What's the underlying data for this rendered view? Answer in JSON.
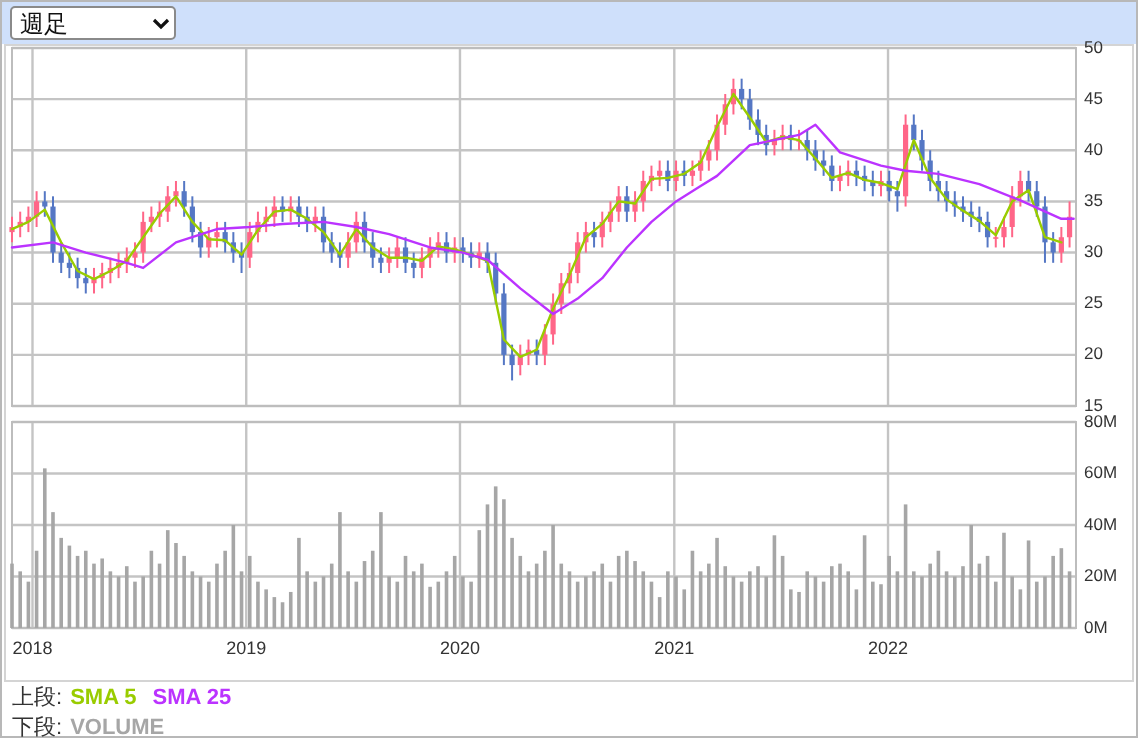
{
  "chart_data": [
    {
      "type": "candlestick",
      "annotations": [
        "週足"
      ],
      "x": [
        "2017-11-27",
        "2017-12-11",
        "2017-12-25",
        "2018-01-08",
        "2018-01-22",
        "2018-02-05",
        "2018-02-19",
        "2018-03-05",
        "2018-03-19",
        "2018-04-02",
        "2018-04-16",
        "2018-04-30",
        "2018-05-14",
        "2018-05-28",
        "2018-06-11",
        "2018-06-25",
        "2018-07-09",
        "2018-07-23",
        "2018-08-06",
        "2018-08-20",
        "2018-09-03",
        "2018-09-17",
        "2018-10-01",
        "2018-10-15",
        "2018-10-29",
        "2018-11-12",
        "2018-11-26",
        "2018-12-10",
        "2018-12-24",
        "2019-01-07",
        "2019-01-21",
        "2019-02-04",
        "2019-02-18",
        "2019-03-04",
        "2019-03-18",
        "2019-04-01",
        "2019-04-15",
        "2019-04-29",
        "2019-05-13",
        "2019-05-27",
        "2019-06-10",
        "2019-06-24",
        "2019-07-08",
        "2019-07-22",
        "2019-08-05",
        "2019-08-19",
        "2019-09-02",
        "2019-09-16",
        "2019-09-30",
        "2019-10-14",
        "2019-10-28",
        "2019-11-11",
        "2019-11-25",
        "2019-12-09",
        "2019-12-23",
        "2020-01-06",
        "2020-01-20",
        "2020-02-03",
        "2020-02-17",
        "2020-03-02",
        "2020-03-16",
        "2020-03-30",
        "2020-04-13",
        "2020-04-27",
        "2020-05-11",
        "2020-05-25",
        "2020-06-08",
        "2020-06-22",
        "2020-07-06",
        "2020-07-20",
        "2020-08-03",
        "2020-08-17",
        "2020-08-31",
        "2020-09-14",
        "2020-09-28",
        "2020-10-12",
        "2020-10-26",
        "2020-11-09",
        "2020-11-23",
        "2020-12-07",
        "2020-12-21",
        "2021-01-04",
        "2021-01-18",
        "2021-02-01",
        "2021-02-15",
        "2021-03-01",
        "2021-03-15",
        "2021-03-29",
        "2021-04-12",
        "2021-04-26",
        "2021-05-10",
        "2021-05-24",
        "2021-06-07",
        "2021-06-21",
        "2021-07-05",
        "2021-07-19",
        "2021-08-02",
        "2021-08-16",
        "2021-08-30",
        "2021-09-13",
        "2021-09-27",
        "2021-10-11",
        "2021-10-25",
        "2021-11-08",
        "2021-11-22",
        "2021-12-06",
        "2021-12-20",
        "2022-01-03",
        "2022-01-17",
        "2022-01-31",
        "2022-02-14",
        "2022-02-28",
        "2022-03-14",
        "2022-03-28",
        "2022-04-11",
        "2022-04-25",
        "2022-05-09",
        "2022-05-23",
        "2022-06-06",
        "2022-06-20",
        "2022-07-04",
        "2022-07-18",
        "2022-08-01",
        "2022-08-15",
        "2022-08-29",
        "2022-09-12",
        "2022-09-26",
        "2022-10-10",
        "2022-10-24",
        "2022-11-07"
      ],
      "ohlc": [
        [
          32,
          33.5,
          31,
          32.5
        ],
        [
          32.5,
          34,
          31.5,
          33
        ],
        [
          33,
          34.5,
          32,
          33.5
        ],
        [
          33.5,
          36,
          32.5,
          35
        ],
        [
          35,
          36,
          33.5,
          34.5
        ],
        [
          34.5,
          35.5,
          29,
          30
        ],
        [
          30,
          31,
          28,
          29
        ],
        [
          29,
          30,
          27.5,
          28.5
        ],
        [
          28.5,
          29.5,
          26.5,
          27.5
        ],
        [
          27.5,
          28.5,
          26,
          27
        ],
        [
          27,
          28.5,
          26,
          27.5
        ],
        [
          27.5,
          29,
          26.5,
          28
        ],
        [
          28,
          29.5,
          27,
          28.5
        ],
        [
          28.5,
          30,
          27.5,
          29
        ],
        [
          29,
          30.5,
          28,
          29.5
        ],
        [
          29.5,
          31,
          28.5,
          30
        ],
        [
          30,
          34,
          29,
          33
        ],
        [
          33,
          34.5,
          32,
          33.5
        ],
        [
          33.5,
          35,
          32.5,
          34
        ],
        [
          34,
          36.5,
          33,
          35.5
        ],
        [
          35.5,
          37,
          34.5,
          36
        ],
        [
          36,
          37,
          33.5,
          34.5
        ],
        [
          34.5,
          35.5,
          31,
          32
        ],
        [
          32,
          33,
          29.5,
          30.5
        ],
        [
          30.5,
          32.5,
          29.5,
          31.5
        ],
        [
          31.5,
          33,
          30.5,
          32
        ],
        [
          32,
          33,
          30,
          31
        ],
        [
          31,
          32,
          29,
          30
        ],
        [
          30,
          31,
          28,
          29.5
        ],
        [
          29.5,
          33,
          28.5,
          32
        ],
        [
          32,
          34,
          31,
          33
        ],
        [
          33,
          34.5,
          32,
          33.5
        ],
        [
          33.5,
          35.5,
          32.5,
          34.5
        ],
        [
          34.5,
          35.5,
          33,
          34
        ],
        [
          34,
          35.5,
          33,
          34.5
        ],
        [
          34.5,
          35.5,
          32.5,
          33.5
        ],
        [
          33.5,
          34.5,
          32,
          33
        ],
        [
          33,
          34.5,
          32,
          33.5
        ],
        [
          33.5,
          34.5,
          30,
          31
        ],
        [
          31,
          32,
          29,
          30
        ],
        [
          30,
          31,
          28.5,
          29.5
        ],
        [
          29.5,
          32,
          28.5,
          31
        ],
        [
          31,
          34,
          30,
          33
        ],
        [
          33,
          34,
          30,
          31
        ],
        [
          31,
          32,
          28.5,
          29.5
        ],
        [
          29.5,
          30.5,
          28,
          29
        ],
        [
          29,
          30.5,
          28,
          29.5
        ],
        [
          29.5,
          31.5,
          28.5,
          30.5
        ],
        [
          30.5,
          31.5,
          28,
          29
        ],
        [
          29,
          30,
          27.5,
          28.5
        ],
        [
          28.5,
          30.5,
          27.5,
          29.5
        ],
        [
          29.5,
          31.5,
          28.5,
          30.5
        ],
        [
          30.5,
          32,
          29.5,
          31
        ],
        [
          31,
          32,
          29,
          30
        ],
        [
          30,
          31.5,
          29,
          30.5
        ],
        [
          30.5,
          31.5,
          29,
          30
        ],
        [
          30,
          31,
          28.5,
          29.5
        ],
        [
          29.5,
          31,
          28.5,
          30
        ],
        [
          30,
          31,
          28,
          29
        ],
        [
          29,
          30,
          25,
          26
        ],
        [
          26,
          27,
          19,
          20
        ],
        [
          20,
          21,
          17.5,
          19
        ],
        [
          19,
          21,
          18,
          20
        ],
        [
          20,
          21.5,
          19,
          20.5
        ],
        [
          20.5,
          21.5,
          19,
          20
        ],
        [
          20,
          23,
          19,
          22
        ],
        [
          22,
          26,
          21,
          25
        ],
        [
          25,
          28,
          24,
          27
        ],
        [
          27,
          29,
          26,
          28
        ],
        [
          28,
          32,
          27,
          31
        ],
        [
          31,
          33,
          30,
          32
        ],
        [
          32,
          33,
          30.5,
          31.5
        ],
        [
          31.5,
          34,
          30.5,
          33
        ],
        [
          33,
          35,
          32,
          34
        ],
        [
          34,
          36.5,
          33,
          35.5
        ],
        [
          35.5,
          36.5,
          33,
          34
        ],
        [
          34,
          36,
          33,
          35
        ],
        [
          35,
          38,
          34,
          37
        ],
        [
          37,
          38.5,
          36,
          37.5
        ],
        [
          37.5,
          39,
          36.5,
          38
        ],
        [
          38,
          39,
          36,
          37
        ],
        [
          37,
          39,
          36,
          38
        ],
        [
          38,
          39,
          36.5,
          37.5
        ],
        [
          37.5,
          39,
          36.5,
          38
        ],
        [
          38,
          40,
          37,
          39
        ],
        [
          39,
          41,
          38,
          40
        ],
        [
          40,
          43.5,
          39,
          42.5
        ],
        [
          42.5,
          45.5,
          41.5,
          44.5
        ],
        [
          44.5,
          47,
          43.5,
          46
        ],
        [
          46,
          47,
          44,
          45
        ],
        [
          45,
          46,
          42,
          43
        ],
        [
          43,
          44,
          40.5,
          41.5
        ],
        [
          41.5,
          42.5,
          39.5,
          40.5
        ],
        [
          40.5,
          42,
          39.5,
          41
        ],
        [
          41,
          42.5,
          40,
          41.5
        ],
        [
          41.5,
          42.5,
          40,
          41
        ],
        [
          41,
          42,
          40,
          41
        ],
        [
          41,
          42,
          39,
          40
        ],
        [
          40,
          41,
          38,
          39
        ],
        [
          39,
          40,
          37.5,
          38.5
        ],
        [
          38.5,
          39.5,
          36,
          37
        ],
        [
          37,
          38.5,
          36,
          37.5
        ],
        [
          37.5,
          39,
          36.5,
          38
        ],
        [
          38,
          39,
          36.5,
          37.5
        ],
        [
          37.5,
          38.5,
          36,
          37
        ],
        [
          37,
          38,
          35.5,
          36.5
        ],
        [
          36.5,
          38,
          35.5,
          37
        ],
        [
          37,
          38,
          35,
          36
        ],
        [
          36,
          37,
          34,
          35.5
        ],
        [
          35.5,
          43.5,
          34.5,
          42.5
        ],
        [
          42.5,
          43.5,
          40,
          41
        ],
        [
          41,
          42,
          38,
          39
        ],
        [
          39,
          40,
          36,
          37
        ],
        [
          37,
          38,
          35,
          36
        ],
        [
          36,
          37,
          34,
          35
        ],
        [
          35,
          36,
          33.5,
          34.5
        ],
        [
          34.5,
          35.5,
          33,
          34
        ],
        [
          34,
          35,
          32.5,
          33.5
        ],
        [
          33.5,
          34.5,
          32,
          33
        ],
        [
          33,
          34,
          30.5,
          31.5
        ],
        [
          31.5,
          32.5,
          30.5,
          31.5
        ],
        [
          31.5,
          33.5,
          30.5,
          32.5
        ],
        [
          32.5,
          36.5,
          31.5,
          35.5
        ],
        [
          35.5,
          38,
          34.5,
          37
        ],
        [
          37,
          38,
          35,
          36
        ],
        [
          36,
          37,
          33.5,
          34.5
        ],
        [
          34.5,
          35.5,
          29,
          31
        ],
        [
          31,
          32,
          29,
          30
        ],
        [
          30,
          32.5,
          29,
          31.5
        ],
        [
          31.5,
          35,
          30.5,
          33.5
        ]
      ],
      "series": [
        {
          "name": "SMA 5",
          "type": "line",
          "color": "#99cc00",
          "x": [
            "2017-11-27",
            "2017-12-25",
            "2018-01-22",
            "2018-02-19",
            "2018-03-19",
            "2018-04-16",
            "2018-05-14",
            "2018-06-11",
            "2018-07-09",
            "2018-08-06",
            "2018-09-03",
            "2018-10-01",
            "2018-10-29",
            "2018-11-26",
            "2018-12-24",
            "2019-01-21",
            "2019-02-18",
            "2019-03-18",
            "2019-04-15",
            "2019-05-13",
            "2019-06-10",
            "2019-07-08",
            "2019-08-05",
            "2019-09-02",
            "2019-09-30",
            "2019-10-28",
            "2019-11-25",
            "2019-12-23",
            "2020-01-20",
            "2020-02-17",
            "2020-03-16",
            "2020-04-13",
            "2020-05-11",
            "2020-06-08",
            "2020-07-06",
            "2020-08-03",
            "2020-08-31",
            "2020-09-28",
            "2020-10-26",
            "2020-11-23",
            "2020-12-21",
            "2021-01-18",
            "2021-02-15",
            "2021-03-15",
            "2021-04-12",
            "2021-05-10",
            "2021-06-07",
            "2021-07-05",
            "2021-08-02",
            "2021-08-30",
            "2021-09-27",
            "2021-10-25",
            "2021-11-22",
            "2021-12-20",
            "2022-01-17",
            "2022-02-14",
            "2022-03-14",
            "2022-04-11",
            "2022-05-09",
            "2022-06-06",
            "2022-07-04",
            "2022-08-01",
            "2022-08-29",
            "2022-09-26",
            "2022-10-24"
          ],
          "values": [
            32.3,
            33,
            34.2,
            31,
            28.2,
            27.4,
            28.2,
            29.2,
            31.5,
            33.8,
            35.5,
            33,
            31.3,
            31.2,
            29.8,
            32.2,
            34,
            34.2,
            33.3,
            32,
            29.8,
            32.3,
            30.5,
            29.5,
            29.5,
            29.2,
            30.6,
            30.3,
            29.8,
            29.2,
            21.5,
            19.8,
            20.5,
            24.5,
            27.8,
            31.5,
            32.8,
            35,
            34.8,
            37.2,
            37.3,
            37.7,
            38.8,
            42.3,
            45.5,
            43.2,
            40.8,
            41.3,
            41,
            39.2,
            37.3,
            37.8,
            37.1,
            36.8,
            36.2,
            41,
            37.3,
            35.2,
            34.1,
            33.1,
            31.7,
            35,
            36.1,
            31.5,
            31
          ]
        },
        {
          "name": "SMA 25",
          "type": "line",
          "color": "#bb33ff",
          "x": [
            "2017-11-27",
            "2018-02-05",
            "2018-04-02",
            "2018-06-11",
            "2018-07-09",
            "2018-09-03",
            "2018-11-12",
            "2019-01-07",
            "2019-03-04",
            "2019-05-13",
            "2019-07-08",
            "2019-09-02",
            "2019-11-11",
            "2020-01-06",
            "2020-02-17",
            "2020-04-13",
            "2020-06-08",
            "2020-07-20",
            "2020-08-31",
            "2020-10-12",
            "2020-11-23",
            "2021-01-04",
            "2021-02-15",
            "2021-03-15",
            "2021-05-10",
            "2021-08-02",
            "2021-08-30",
            "2021-10-11",
            "2021-12-20",
            "2022-01-31",
            "2022-03-28",
            "2022-06-06",
            "2022-08-15",
            "2022-10-24",
            "2022-11-14"
          ],
          "values": [
            30.5,
            31,
            30,
            29,
            28.5,
            31,
            32.3,
            32.5,
            32.8,
            33,
            32.5,
            31.8,
            30.5,
            30,
            29.3,
            26.5,
            24,
            25.5,
            27.5,
            30.5,
            33,
            35,
            36.5,
            37.5,
            40.5,
            41.5,
            42.5,
            39.8,
            38.5,
            38,
            37.7,
            36.7,
            35.1,
            33.3,
            33.3
          ]
        }
      ],
      "xlim": [
        "2017-11-27",
        "2022-11-18"
      ],
      "xticks": [
        {
          "value": "2018-01-01",
          "label": null
        },
        {
          "value": "2019-01-01",
          "label": null
        },
        {
          "value": "2020-01-01",
          "label": null
        },
        {
          "value": "2021-01-01",
          "label": null
        },
        {
          "value": "2022-01-01",
          "label": null
        }
      ],
      "ylim": [
        15,
        50
      ],
      "yticks": [
        15,
        20,
        25,
        30,
        35,
        40,
        45,
        50
      ],
      "tick_labels": "y",
      "grid": true,
      "legend": "bottom",
      "legend_title": "上段:"
    },
    {
      "type": "bar",
      "x": [
        "2017-11-27",
        "2017-12-11",
        "2017-12-25",
        "2018-01-08",
        "2018-01-22",
        "2018-02-05",
        "2018-02-19",
        "2018-03-05",
        "2018-03-19",
        "2018-04-02",
        "2018-04-16",
        "2018-04-30",
        "2018-05-14",
        "2018-05-28",
        "2018-06-11",
        "2018-06-25",
        "2018-07-09",
        "2018-07-23",
        "2018-08-06",
        "2018-08-20",
        "2018-09-03",
        "2018-09-17",
        "2018-10-01",
        "2018-10-15",
        "2018-10-29",
        "2018-11-12",
        "2018-11-26",
        "2018-12-10",
        "2018-12-24",
        "2019-01-07",
        "2019-01-21",
        "2019-02-04",
        "2019-02-18",
        "2019-03-04",
        "2019-03-18",
        "2019-04-01",
        "2019-04-15",
        "2019-04-29",
        "2019-05-13",
        "2019-05-27",
        "2019-06-10",
        "2019-06-24",
        "2019-07-08",
        "2019-07-22",
        "2019-08-05",
        "2019-08-19",
        "2019-09-02",
        "2019-09-16",
        "2019-09-30",
        "2019-10-14",
        "2019-10-28",
        "2019-11-11",
        "2019-11-25",
        "2019-12-09",
        "2019-12-23",
        "2020-01-06",
        "2020-01-20",
        "2020-02-03",
        "2020-02-17",
        "2020-03-02",
        "2020-03-16",
        "2020-03-30",
        "2020-04-13",
        "2020-04-27",
        "2020-05-11",
        "2020-05-25",
        "2020-06-08",
        "2020-06-22",
        "2020-07-06",
        "2020-07-20",
        "2020-08-03",
        "2020-08-17",
        "2020-08-31",
        "2020-09-14",
        "2020-09-28",
        "2020-10-12",
        "2020-10-26",
        "2020-11-09",
        "2020-11-23",
        "2020-12-07",
        "2020-12-21",
        "2021-01-04",
        "2021-01-18",
        "2021-02-01",
        "2021-02-15",
        "2021-03-01",
        "2021-03-15",
        "2021-03-29",
        "2021-04-12",
        "2021-04-26",
        "2021-05-10",
        "2021-05-24",
        "2021-06-07",
        "2021-06-21",
        "2021-07-05",
        "2021-07-19",
        "2021-08-02",
        "2021-08-16",
        "2021-08-30",
        "2021-09-13",
        "2021-09-27",
        "2021-10-11",
        "2021-10-25",
        "2021-11-08",
        "2021-11-22",
        "2021-12-06",
        "2021-12-20",
        "2022-01-03",
        "2022-01-17",
        "2022-01-31",
        "2022-02-14",
        "2022-02-28",
        "2022-03-14",
        "2022-03-28",
        "2022-04-11",
        "2022-04-25",
        "2022-05-09",
        "2022-05-23",
        "2022-06-06",
        "2022-06-20",
        "2022-07-04",
        "2022-07-18",
        "2022-08-01",
        "2022-08-15",
        "2022-08-29",
        "2022-09-12",
        "2022-09-26",
        "2022-10-10",
        "2022-10-24",
        "2022-11-07"
      ],
      "series": [
        {
          "name": "VOLUME",
          "color": "#a6a6a6",
          "values": [
            25,
            22,
            18,
            30,
            62,
            45,
            35,
            32,
            28,
            30,
            25,
            27,
            22,
            20,
            24,
            18,
            20,
            30,
            25,
            38,
            33,
            28,
            22,
            20,
            18,
            25,
            30,
            40,
            22,
            28,
            18,
            15,
            12,
            10,
            14,
            35,
            22,
            18,
            20,
            25,
            45,
            22,
            18,
            26,
            30,
            45,
            20,
            18,
            28,
            22,
            25,
            16,
            18,
            22,
            28,
            20,
            18,
            38,
            48,
            55,
            50,
            35,
            28,
            22,
            25,
            30,
            40,
            25,
            22,
            18,
            20,
            22,
            25,
            18,
            28,
            30,
            26,
            22,
            18,
            12,
            22,
            20,
            15,
            30,
            22,
            25,
            35,
            24,
            20,
            18,
            22,
            24,
            20,
            36,
            28,
            15,
            14,
            22,
            20,
            18,
            24,
            25,
            22,
            15,
            36,
            18,
            17,
            28,
            22,
            48,
            22,
            20,
            25,
            30,
            22,
            20,
            24,
            40,
            25,
            28,
            18,
            37,
            20,
            15,
            34,
            18,
            20,
            28,
            31,
            22
          ]
        }
      ],
      "xlim": [
        "2017-11-27",
        "2022-11-18"
      ],
      "xticks": [
        {
          "value": "2018-01-01",
          "label": "2018"
        },
        {
          "value": "2019-01-01",
          "label": "2019"
        },
        {
          "value": "2020-01-01",
          "label": "2020"
        },
        {
          "value": "2021-01-01",
          "label": "2021"
        },
        {
          "value": "2022-01-01",
          "label": "2022"
        }
      ],
      "ylim": [
        0,
        80
      ],
      "yticks": [
        {
          "value": 0,
          "label": "0M"
        },
        {
          "value": 20,
          "label": "20M"
        },
        {
          "value": 40,
          "label": "40M"
        },
        {
          "value": 60,
          "label": "60M"
        },
        {
          "value": 80,
          "label": "80M"
        }
      ],
      "grid": true,
      "legend": "bottom",
      "legend_title": "下段:"
    }
  ]
}
